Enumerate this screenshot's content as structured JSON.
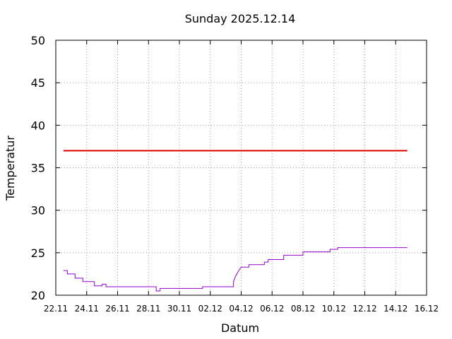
{
  "chart_data": {
    "type": "line",
    "title": "Sunday 2025.12.14",
    "xlabel": "Datum",
    "ylabel": "Temperatur",
    "ylim": [
      20,
      50
    ],
    "yticks": [
      "20",
      "25",
      "30",
      "35",
      "40",
      "45",
      "50"
    ],
    "xlim": [
      "2025-11-22",
      "2025-12-16"
    ],
    "xticks": [
      "22.11",
      "24.11",
      "26.11",
      "28.11",
      "30.11",
      "02.12",
      "04.12",
      "06.12",
      "08.12",
      "10.12",
      "12.12",
      "14.12",
      "16.12"
    ],
    "grid": true,
    "series": [
      {
        "color": "#e00000",
        "points": [
          [
            "2025-11-22T12:00",
            37.0
          ],
          [
            "2025-12-14T18:00",
            37.0
          ]
        ]
      },
      {
        "color": "#9400d3",
        "points": [
          [
            "2025-11-22T12:00",
            22.9
          ],
          [
            "2025-11-22T18:00",
            22.9
          ],
          [
            "2025-11-22T18:00",
            22.5
          ],
          [
            "2025-11-23T06:00",
            22.5
          ],
          [
            "2025-11-23T06:00",
            22.0
          ],
          [
            "2025-11-23T18:00",
            22.0
          ],
          [
            "2025-11-23T18:00",
            21.6
          ],
          [
            "2025-11-24T12:00",
            21.6
          ],
          [
            "2025-11-24T12:00",
            21.1
          ],
          [
            "2025-11-25T00:00",
            21.1
          ],
          [
            "2025-11-25T00:00",
            21.3
          ],
          [
            "2025-11-25T06:00",
            21.3
          ],
          [
            "2025-11-25T06:00",
            21.0
          ],
          [
            "2025-11-28T12:00",
            21.0
          ],
          [
            "2025-11-28T12:00",
            20.5
          ],
          [
            "2025-11-28T18:00",
            20.5
          ],
          [
            "2025-11-28T18:00",
            20.8
          ],
          [
            "2025-11-30T12:00",
            20.8
          ],
          [
            "2025-11-30T12:00",
            20.8
          ],
          [
            "2025-12-01T12:00",
            20.8
          ],
          [
            "2025-12-01T12:00",
            21.0
          ],
          [
            "2025-12-03T12:00",
            21.0
          ],
          [
            "2025-12-03T12:00",
            21.6
          ],
          [
            "2025-12-03T15:00",
            22.2
          ],
          [
            "2025-12-03T18:00",
            22.6
          ],
          [
            "2025-12-03T21:00",
            23.0
          ],
          [
            "2025-12-04T00:00",
            23.3
          ],
          [
            "2025-12-04T12:00",
            23.3
          ],
          [
            "2025-12-04T12:00",
            23.6
          ],
          [
            "2025-12-05T12:00",
            23.6
          ],
          [
            "2025-12-05T12:00",
            23.9
          ],
          [
            "2025-12-05T18:00",
            23.9
          ],
          [
            "2025-12-05T18:00",
            24.2
          ],
          [
            "2025-12-06T18:00",
            24.2
          ],
          [
            "2025-12-06T18:00",
            24.7
          ],
          [
            "2025-12-08T00:00",
            24.7
          ],
          [
            "2025-12-08T00:00",
            25.1
          ],
          [
            "2025-12-09T18:00",
            25.1
          ],
          [
            "2025-12-09T18:00",
            25.4
          ],
          [
            "2025-12-10T06:00",
            25.4
          ],
          [
            "2025-12-10T06:00",
            25.6
          ],
          [
            "2025-12-14T18:00",
            25.6
          ]
        ]
      }
    ]
  }
}
